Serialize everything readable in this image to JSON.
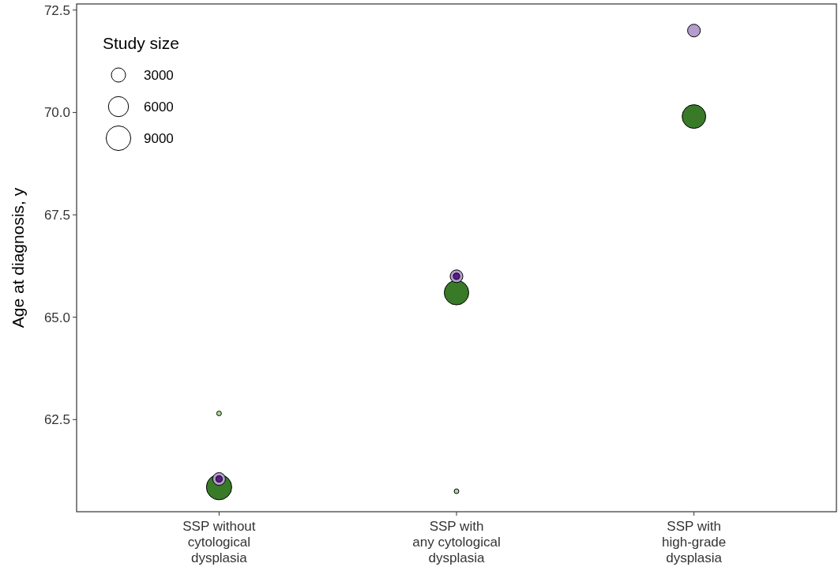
{
  "chart_data": {
    "type": "bubble",
    "ylabel": "Age at diagnosis, y",
    "legend_title": "Study size",
    "size_legend": [
      3000,
      6000,
      9000
    ],
    "categories": [
      "SSP without\ncytological\ndysplasia",
      "SSP with\nany cytological\ndysplasia",
      "SSP with\nhigh-grade\ndysplasia"
    ],
    "ylim": [
      60.25,
      72.65
    ],
    "yticks": [
      62.5,
      {
        "value": 65,
        "label": "65.0"
      },
      {
        "value": 67.5,
        "label": "67.5"
      },
      {
        "value": 70,
        "label": "70.0"
      },
      72.5
    ],
    "grid": false,
    "series": [
      {
        "color": "#387a28",
        "values": [
          60.85,
          65.6,
          69.9
        ],
        "sizes": [
          9500,
          8900,
          8300
        ]
      },
      {
        "color": "#a8de98",
        "values": [
          62.65,
          60.75,
          null
        ],
        "sizes": [
          330,
          330,
          null
        ]
      },
      {
        "color": "#b39dcc",
        "values": [
          61.05,
          66.0,
          72.0
        ],
        "sizes": [
          2400,
          2400,
          2400
        ]
      },
      {
        "color": "#5c1a8c",
        "values": [
          61.05,
          66.0,
          null
        ],
        "sizes": [
          600,
          600,
          null
        ]
      }
    ]
  }
}
